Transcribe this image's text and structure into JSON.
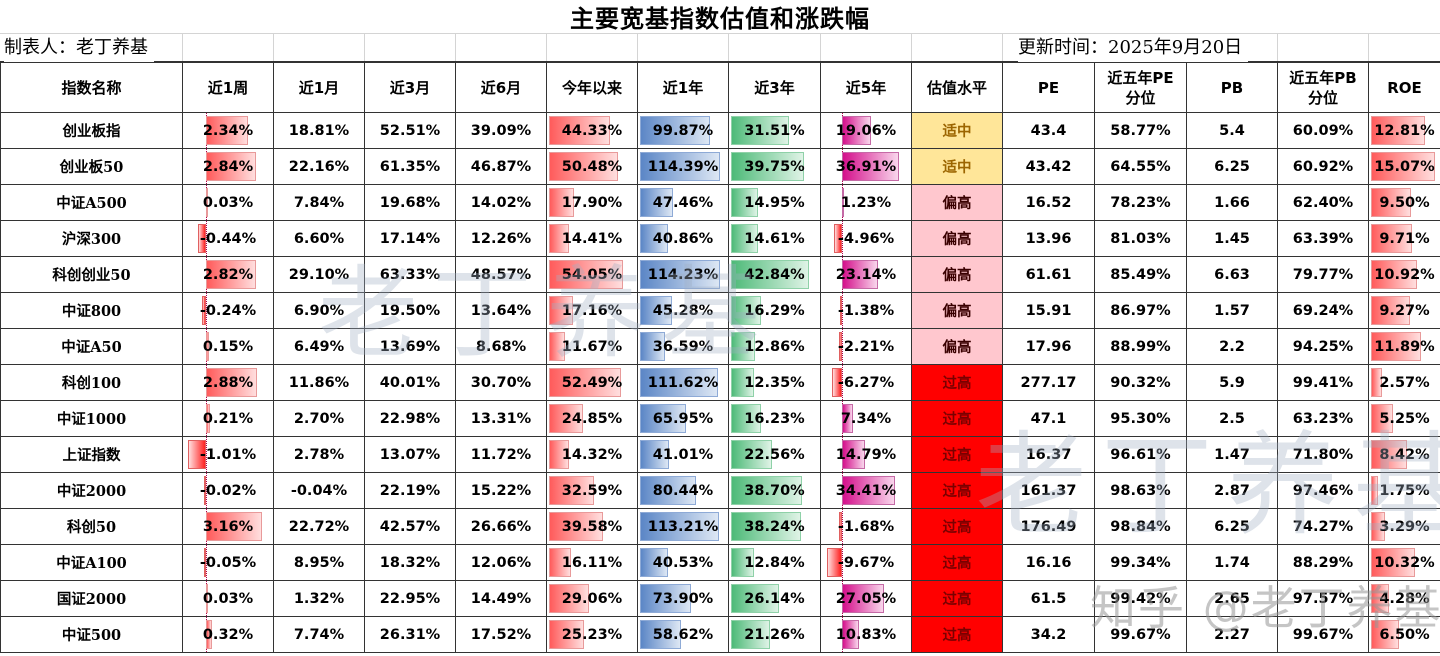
{
  "title": "主要宽基指数估值和涨跌幅",
  "maker": "制表人：老丁养基",
  "updated": "更新时间：2025年9月20日",
  "colors": {
    "bar_1w": "#ff5b5b",
    "bar_ytd": "#ff5b5b",
    "bar_1y": "#5b86c6",
    "bar_3y": "#4dba78",
    "bar_5y": "#d40f8b",
    "bar_roe": "#ff5b5b",
    "level_mid_bg": "#ffe699",
    "level_high_bg": "#ffc7ce",
    "level_over_bg": "#ff0000"
  },
  "columns": [
    "指数名称",
    "近1周",
    "近1月",
    "近3月",
    "近6月",
    "今年以来",
    "近1年",
    "近3年",
    "近5年",
    "估值水平",
    "PE",
    "近五年PE\n分位",
    "PB",
    "近五年PB\n分位",
    "ROE"
  ],
  "headers": {
    "name": "指数名称",
    "w1": "近1周",
    "m1": "近1月",
    "m3": "近3月",
    "m6": "近6月",
    "ytd": "今年以来",
    "y1": "近1年",
    "y3": "近3年",
    "y5": "近5年",
    "level": "估值水平",
    "pe": "PE",
    "pe_pct_1": "近五年PE",
    "pe_pct_2": "分位",
    "pb": "PB",
    "pb_pct_1": "近五年PB",
    "pb_pct_2": "分位",
    "roe": "ROE"
  },
  "rows": [
    {
      "name": "创业板指",
      "w1": "2.34%",
      "m1": "18.81%",
      "m3": "52.51%",
      "m6": "39.09%",
      "ytd": "44.33%",
      "y1": "99.87%",
      "y3": "31.51%",
      "y5": "19.06%",
      "level": "适中",
      "pe": "43.4",
      "pe_pct": "58.77%",
      "pb": "5.4",
      "pb_pct": "60.09%",
      "roe": "12.81%"
    },
    {
      "name": "创业板50",
      "w1": "2.84%",
      "m1": "22.16%",
      "m3": "61.35%",
      "m6": "46.87%",
      "ytd": "50.48%",
      "y1": "114.39%",
      "y3": "39.75%",
      "y5": "36.91%",
      "level": "适中",
      "pe": "43.42",
      "pe_pct": "64.55%",
      "pb": "6.25",
      "pb_pct": "60.92%",
      "roe": "15.07%"
    },
    {
      "name": "中证A500",
      "w1": "0.03%",
      "m1": "7.84%",
      "m3": "19.68%",
      "m6": "14.02%",
      "ytd": "17.90%",
      "y1": "47.46%",
      "y3": "14.95%",
      "y5": "1.23%",
      "level": "偏高",
      "pe": "16.52",
      "pe_pct": "78.23%",
      "pb": "1.66",
      "pb_pct": "62.40%",
      "roe": "9.50%"
    },
    {
      "name": "沪深300",
      "w1": "-0.44%",
      "m1": "6.60%",
      "m3": "17.14%",
      "m6": "12.26%",
      "ytd": "14.41%",
      "y1": "40.86%",
      "y3": "14.61%",
      "y5": "-4.96%",
      "level": "偏高",
      "pe": "13.96",
      "pe_pct": "81.03%",
      "pb": "1.45",
      "pb_pct": "63.39%",
      "roe": "9.71%"
    },
    {
      "name": "科创创业50",
      "w1": "2.82%",
      "m1": "29.10%",
      "m3": "63.33%",
      "m6": "48.57%",
      "ytd": "54.05%",
      "y1": "114.23%",
      "y3": "42.84%",
      "y5": "23.14%",
      "level": "偏高",
      "pe": "61.61",
      "pe_pct": "85.49%",
      "pb": "6.63",
      "pb_pct": "79.77%",
      "roe": "10.92%"
    },
    {
      "name": "中证800",
      "w1": "-0.24%",
      "m1": "6.90%",
      "m3": "19.50%",
      "m6": "13.64%",
      "ytd": "17.16%",
      "y1": "45.28%",
      "y3": "16.29%",
      "y5": "-1.38%",
      "level": "偏高",
      "pe": "15.91",
      "pe_pct": "86.97%",
      "pb": "1.57",
      "pb_pct": "69.24%",
      "roe": "9.27%"
    },
    {
      "name": "中证A50",
      "w1": "0.15%",
      "m1": "6.49%",
      "m3": "13.69%",
      "m6": "8.68%",
      "ytd": "11.67%",
      "y1": "36.59%",
      "y3": "12.86%",
      "y5": "-2.21%",
      "level": "偏高",
      "pe": "17.96",
      "pe_pct": "88.99%",
      "pb": "2.2",
      "pb_pct": "94.25%",
      "roe": "11.89%"
    },
    {
      "name": "科创100",
      "w1": "2.88%",
      "m1": "11.86%",
      "m3": "40.01%",
      "m6": "30.70%",
      "ytd": "52.49%",
      "y1": "111.62%",
      "y3": "12.35%",
      "y5": "-6.27%",
      "level": "过高",
      "pe": "277.17",
      "pe_pct": "90.32%",
      "pb": "5.9",
      "pb_pct": "99.41%",
      "roe": "2.57%"
    },
    {
      "name": "中证1000",
      "w1": "0.21%",
      "m1": "2.70%",
      "m3": "22.98%",
      "m6": "13.31%",
      "ytd": "24.85%",
      "y1": "65.95%",
      "y3": "16.23%",
      "y5": "7.34%",
      "level": "过高",
      "pe": "47.1",
      "pe_pct": "95.30%",
      "pb": "2.5",
      "pb_pct": "63.23%",
      "roe": "5.25%"
    },
    {
      "name": "上证指数",
      "w1": "-1.01%",
      "m1": "2.78%",
      "m3": "13.07%",
      "m6": "11.72%",
      "ytd": "14.32%",
      "y1": "41.01%",
      "y3": "22.56%",
      "y5": "14.79%",
      "level": "过高",
      "pe": "16.37",
      "pe_pct": "96.61%",
      "pb": "1.47",
      "pb_pct": "71.80%",
      "roe": "8.42%"
    },
    {
      "name": "中证2000",
      "w1": "-0.02%",
      "m1": "-0.04%",
      "m3": "22.19%",
      "m6": "15.22%",
      "ytd": "32.59%",
      "y1": "80.44%",
      "y3": "38.70%",
      "y5": "34.41%",
      "level": "过高",
      "pe": "161.37",
      "pe_pct": "98.63%",
      "pb": "2.87",
      "pb_pct": "97.46%",
      "roe": "1.75%"
    },
    {
      "name": "科创50",
      "w1": "3.16%",
      "m1": "22.72%",
      "m3": "42.57%",
      "m6": "26.66%",
      "ytd": "39.58%",
      "y1": "113.21%",
      "y3": "38.24%",
      "y5": "-1.68%",
      "level": "过高",
      "pe": "176.49",
      "pe_pct": "98.84%",
      "pb": "6.25",
      "pb_pct": "74.27%",
      "roe": "3.29%"
    },
    {
      "name": "中证A100",
      "w1": "-0.05%",
      "m1": "8.95%",
      "m3": "18.32%",
      "m6": "12.06%",
      "ytd": "16.11%",
      "y1": "40.53%",
      "y3": "12.84%",
      "y5": "-9.67%",
      "level": "过高",
      "pe": "16.16",
      "pe_pct": "99.34%",
      "pb": "1.74",
      "pb_pct": "88.29%",
      "roe": "10.32%"
    },
    {
      "name": "国证2000",
      "w1": "0.03%",
      "m1": "1.32%",
      "m3": "22.95%",
      "m6": "14.49%",
      "ytd": "29.06%",
      "y1": "73.90%",
      "y3": "26.14%",
      "y5": "27.05%",
      "level": "过高",
      "pe": "61.5",
      "pe_pct": "99.42%",
      "pb": "2.65",
      "pb_pct": "97.57%",
      "roe": "4.28%"
    },
    {
      "name": "中证500",
      "w1": "0.32%",
      "m1": "7.74%",
      "m3": "26.31%",
      "m6": "17.52%",
      "ytd": "25.23%",
      "y1": "58.62%",
      "y3": "21.26%",
      "y5": "10.83%",
      "level": "过高",
      "pe": "34.2",
      "pe_pct": "99.67%",
      "pb": "2.27",
      "pb_pct": "99.67%",
      "roe": "6.50%"
    }
  ],
  "watermarks": {
    "center": "老丁养基",
    "right": "老丁养基",
    "platform": "知乎 @老丁养基"
  }
}
